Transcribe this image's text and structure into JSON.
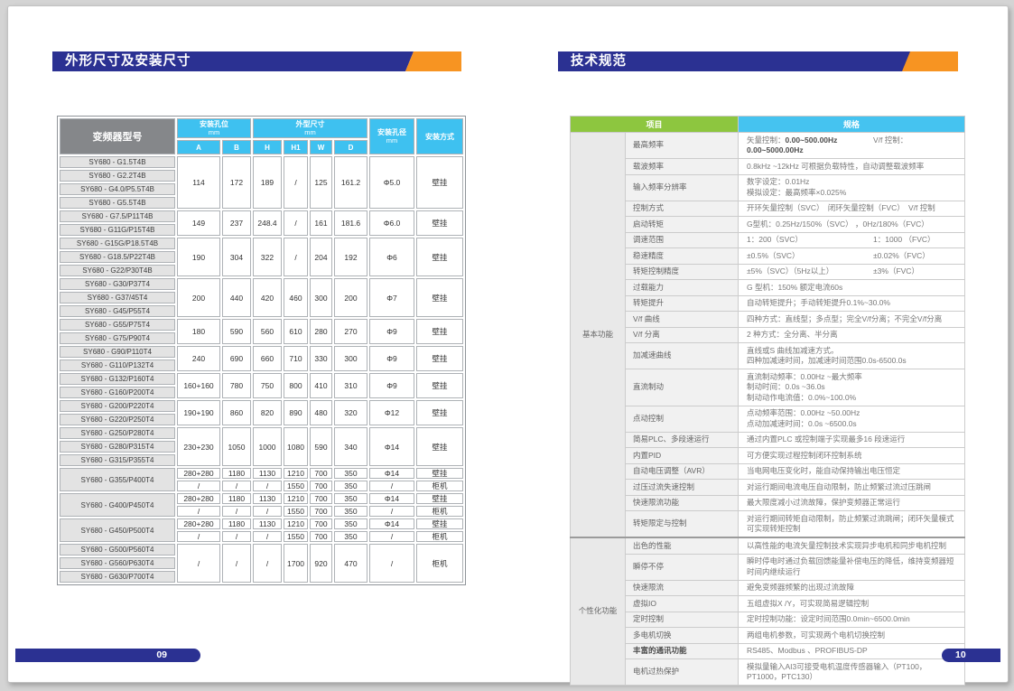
{
  "page": {
    "left_page_number": "09",
    "right_page_number": "10"
  },
  "left_page": {
    "title": "外形尺寸及安装尺寸",
    "table": {
      "col_model": "变频器型号",
      "grp_holes": "安装孔位",
      "grp_dims": "外型尺寸",
      "unit": "mm",
      "col_hole_dia": "安装孔径",
      "col_mount": "安装方式",
      "sub_cols": [
        "A",
        "B",
        "H",
        "H1",
        "W",
        "D"
      ],
      "groups": [
        {
          "models": [
            "SY680 - G1.5T4B",
            "SY680 - G2.2T4B",
            "SY680 - G4.0/P5.5T4B",
            "SY680 - G5.5T4B"
          ],
          "rows": [
            [
              "114",
              "172",
              "189",
              "/",
              "125",
              "161.2",
              "Φ5.0",
              "壁挂"
            ]
          ]
        },
        {
          "models": [
            "SY680 - G7.5/P11T4B",
            "SY680 - G11G/P15T4B"
          ],
          "rows": [
            [
              "149",
              "237",
              "248.4",
              "/",
              "161",
              "181.6",
              "Φ6.0",
              "壁挂"
            ]
          ]
        },
        {
          "models": [
            "SY680 - G15G/P18.5T4B",
            "SY680 - G18.5/P22T4B",
            "SY680 - G22/P30T4B"
          ],
          "rows": [
            [
              "190",
              "304",
              "322",
              "/",
              "204",
              "192",
              "Φ6",
              "壁挂"
            ]
          ]
        },
        {
          "models": [
            "SY680 - G30/P37T4",
            "SY680 - G37/45T4",
            "SY680 - G45/P55T4"
          ],
          "rows": [
            [
              "200",
              "440",
              "420",
              "460",
              "300",
              "200",
              "Φ7",
              "壁挂"
            ]
          ]
        },
        {
          "models": [
            "SY680 - G55/P75T4",
            "SY680 - G75/P90T4"
          ],
          "rows": [
            [
              "180",
              "590",
              "560",
              "610",
              "280",
              "270",
              "Φ9",
              "壁挂"
            ]
          ]
        },
        {
          "models": [
            "SY680 - G90/P110T4",
            "SY680 - G110/P132T4"
          ],
          "rows": [
            [
              "240",
              "690",
              "660",
              "710",
              "330",
              "300",
              "Φ9",
              "壁挂"
            ]
          ]
        },
        {
          "models": [
            "SY680 - G132/P160T4",
            "SY680 - G160/P200T4"
          ],
          "rows": [
            [
              "160+160",
              "780",
              "750",
              "800",
              "410",
              "310",
              "Φ9",
              "壁挂"
            ]
          ]
        },
        {
          "models": [
            "SY680 - G200/P220T4",
            "SY680 - G220/P250T4"
          ],
          "rows": [
            [
              "190+190",
              "860",
              "820",
              "890",
              "480",
              "320",
              "Φ12",
              "壁挂"
            ]
          ]
        },
        {
          "models": [
            "SY680 - G250/P280T4",
            "SY680 - G280/P315T4",
            "SY680 - G315/P355T4"
          ],
          "rows": [
            [
              "230+230",
              "1050",
              "1000",
              "1080",
              "590",
              "340",
              "Φ14",
              "壁挂"
            ]
          ]
        },
        {
          "models": [
            "SY680 - G355/P400T4"
          ],
          "rows": [
            [
              "280+280",
              "1180",
              "1130",
              "1210",
              "700",
              "350",
              "Φ14",
              "壁挂"
            ],
            [
              "/",
              "/",
              "/",
              "1550",
              "700",
              "350",
              "/",
              "柜机"
            ]
          ]
        },
        {
          "models": [
            "SY680 - G400/P450T4"
          ],
          "rows": [
            [
              "280+280",
              "1180",
              "1130",
              "1210",
              "700",
              "350",
              "Φ14",
              "壁挂"
            ],
            [
              "/",
              "/",
              "/",
              "1550",
              "700",
              "350",
              "/",
              "柜机"
            ]
          ]
        },
        {
          "models": [
            "SY680 - G450/P500T4"
          ],
          "rows": [
            [
              "280+280",
              "1180",
              "1130",
              "1210",
              "700",
              "350",
              "Φ14",
              "壁挂"
            ],
            [
              "/",
              "/",
              "/",
              "1550",
              "700",
              "350",
              "/",
              "柜机"
            ]
          ]
        },
        {
          "models": [
            "SY680 - G500/P560T4",
            "SY680 - G560/P630T4",
            "SY680 - G630/P700T4"
          ],
          "rows": [
            [
              "/",
              "/",
              "/",
              "1700",
              "920",
              "470",
              "/",
              "柜机"
            ]
          ]
        }
      ]
    }
  },
  "right_page": {
    "title": "技术规范",
    "table": {
      "col_item": "项目",
      "col_spec": "规格",
      "sections": [
        {
          "category": "基本功能",
          "rows": [
            {
              "item": "最高频率",
              "lines": [
                {
                  "cols": [
                    "矢量控制：**0.00~500.00Hz**",
                    "V/f 控制：**0.00~5000.00Hz**"
                  ]
                }
              ]
            },
            {
              "item": "载波频率",
              "lines": [
                "0.8kHz ~12kHz 可根据负载特性，自动调整载波频率"
              ]
            },
            {
              "item": "输入频率分辨率",
              "lines": [
                "数字设定：0.01Hz",
                "模拟设定：最高频率×0.025%"
              ]
            },
            {
              "item": "控制方式",
              "lines": [
                "开环矢量控制（SVC）　闭环矢量控制（FVC）　V/f 控制"
              ]
            },
            {
              "item": "启动转矩",
              "lines": [
                "G型机：0.25Hz/150%（SVC） ，0Hz/180%（FVC）"
              ]
            },
            {
              "item": "调速范围",
              "lines": [
                {
                  "cols": [
                    "1：200（SVC）",
                    "1：1000 （FVC）"
                  ]
                }
              ]
            },
            {
              "item": "稳速精度",
              "lines": [
                {
                  "cols": [
                    "±0.5%（SVC）",
                    "±0.02%（FVC）"
                  ]
                }
              ]
            },
            {
              "item": "转矩控制精度",
              "lines": [
                {
                  "cols": [
                    "±5%（SVC）（5Hz以上）",
                    "±3%（FVC）"
                  ]
                }
              ]
            },
            {
              "item": "过载能力",
              "lines": [
                "G 型机：150% 额定电流60s"
              ]
            },
            {
              "item": "转矩提升",
              "lines": [
                "自动转矩提升；手动转矩提升0.1%~30.0%"
              ]
            },
            {
              "item": "V/f 曲线",
              "lines": [
                "四种方式：直线型；多点型；完全V/f分离；不完全V/f分离"
              ]
            },
            {
              "item": "V/f 分离",
              "lines": [
                "2 种方式：全分离、半分离"
              ]
            },
            {
              "item": "加减速曲线",
              "lines": [
                "直线或S 曲线加减速方式。",
                "四种加减速时间，加减速时间范围0.0s-6500.0s"
              ]
            },
            {
              "item": "直流制动",
              "lines": [
                "直流制动频率：0.00Hz ~最大频率",
                "制动时间：0.0s ~36.0s",
                "制动动作电流值：0.0%~100.0%"
              ]
            },
            {
              "item": "点动控制",
              "lines": [
                "点动频率范围：0.00Hz ~50.00Hz",
                "点动加减速时间：0.0s ~6500.0s"
              ]
            },
            {
              "item": "简易PLC、多段速运行",
              "lines": [
                "通过内置PLC 或控制端子实现最多16 段速运行"
              ]
            },
            {
              "item": "内置PID",
              "lines": [
                "可方便实现过程控制闭环控制系统"
              ]
            },
            {
              "item": "自动电压调整（AVR）",
              "lines": [
                "当电网电压变化时，能自动保持输出电压恒定"
              ]
            },
            {
              "item": "过压过流失速控制",
              "lines": [
                "对运行期间电流电压自动限制，防止频繁过流过压跳闸"
              ]
            },
            {
              "item": "快速限流功能",
              "lines": [
                "最大限度减小过流故障，保护变频器正常运行"
              ]
            },
            {
              "item": "转矩限定与控制",
              "lines": [
                "对运行期间转矩自动限制，防止频繁过流跳闸；闭环矢量模式可实现转矩控制"
              ]
            }
          ]
        },
        {
          "category": "个性化功能",
          "rows": [
            {
              "item": "出色的性能",
              "lines": [
                "以高性能的电流矢量控制技术实现异步电机和同步电机控制"
              ]
            },
            {
              "item": "瞬停不停",
              "lines": [
                "瞬时停电时通过负载回馈能量补偿电压的降低，维持变频器短时间内继续运行"
              ]
            },
            {
              "item": "快速限流",
              "lines": [
                "避免变频器频繁的出现过流故障"
              ]
            },
            {
              "item": "虚拟IO",
              "lines": [
                "五组虚拟X /Y，可实现简易逻辑控制"
              ]
            },
            {
              "item": "定时控制",
              "lines": [
                "定时控制功能：设定时间范围0.0min~6500.0min"
              ]
            },
            {
              "item": "多电机切换",
              "lines": [
                "两组电机参数，可实现两个电机切换控制"
              ]
            },
            {
              "item": "丰富的通讯功能",
              "bold": true,
              "lines": [
                "RS485、Modbus 、PROFIBUS-DP"
              ]
            },
            {
              "item": "电机过热保护",
              "lines": [
                "模拟量输入AI3可接受电机温度传感器输入（PT100，PT1000，PTC130）"
              ]
            }
          ]
        }
      ]
    }
  }
}
